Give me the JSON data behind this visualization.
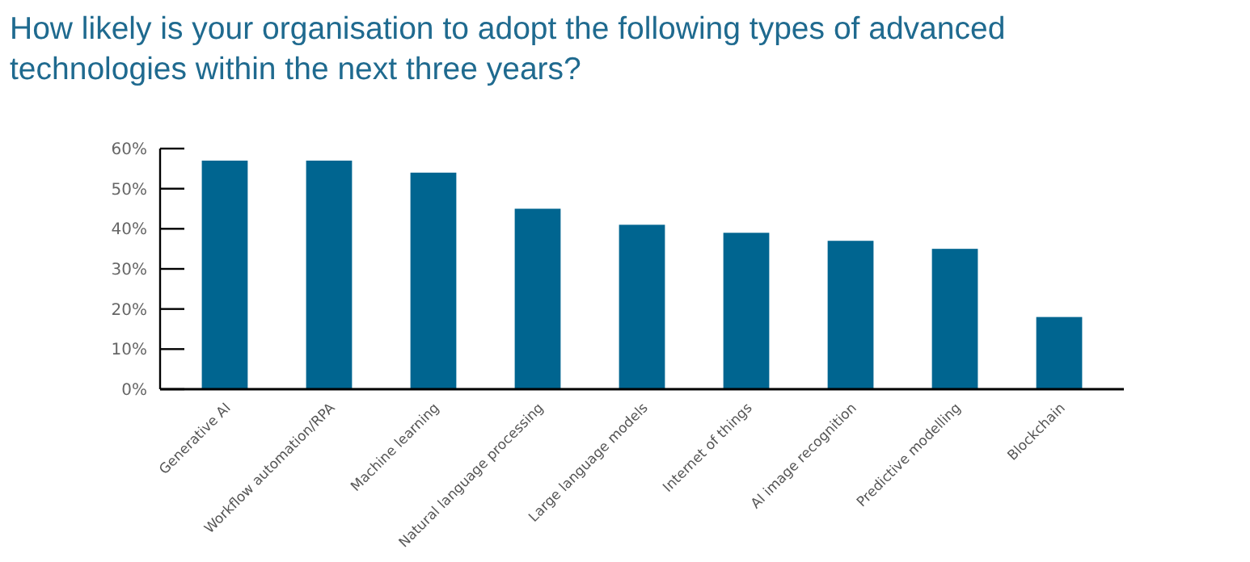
{
  "chart_data": {
    "type": "bar",
    "title": "How likely is your organisation to adopt the following types of advanced technologies within the next three years?",
    "categories": [
      "Generative AI",
      "Workflow automation/RPA",
      "Machine learning",
      "Natural language processing",
      "Large language models",
      "Internet of things",
      "AI image recognition",
      "Predictive modelling",
      "Blockchain"
    ],
    "values": [
      57,
      57,
      54,
      45,
      41,
      39,
      37,
      35,
      18
    ],
    "color": "#006590",
    "ylim": [
      0,
      60
    ],
    "yticks": [
      {
        "value": 0,
        "label": "0%"
      },
      {
        "value": 10,
        "label": "10%"
      },
      {
        "value": 20,
        "label": "20%"
      },
      {
        "value": 30,
        "label": "30%"
      },
      {
        "value": 40,
        "label": "40%"
      },
      {
        "value": 50,
        "label": "50%"
      },
      {
        "value": 60,
        "label": "60%"
      }
    ],
    "grid": false
  }
}
